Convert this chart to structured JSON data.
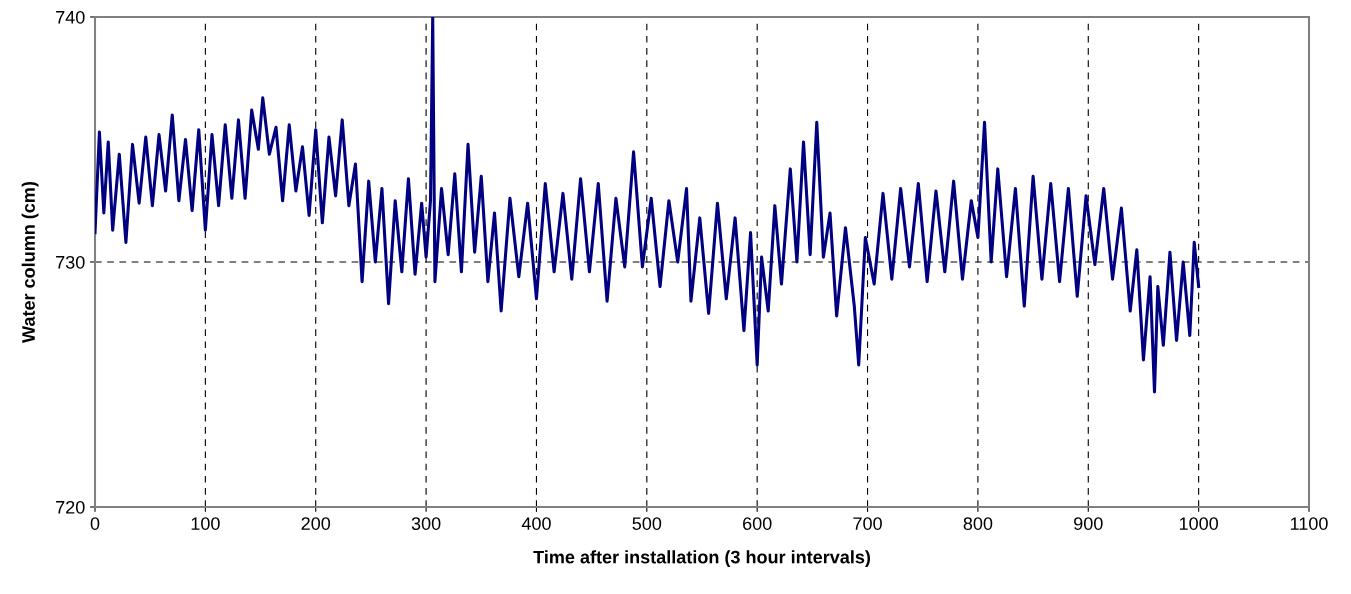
{
  "chart_data": {
    "type": "line",
    "xlabel": "Time after installation (3 hour intervals)",
    "ylabel": "Water column (cm)",
    "xlim": [
      0,
      1100
    ],
    "xticks": [
      0,
      100,
      200,
      300,
      400,
      500,
      600,
      700,
      800,
      900,
      1000,
      1100
    ],
    "ylim": [
      720,
      740
    ],
    "yticks": [
      720,
      730,
      740
    ],
    "grid": true,
    "marker": "none",
    "line_style": "solid",
    "series": [
      {
        "color": "#000080",
        "x": [
          0,
          4,
          8,
          12,
          16,
          22,
          28,
          34,
          40,
          46,
          52,
          58,
          64,
          70,
          76,
          82,
          88,
          94,
          100,
          106,
          112,
          118,
          124,
          130,
          136,
          142,
          148,
          152,
          158,
          164,
          170,
          176,
          182,
          188,
          194,
          200,
          206,
          212,
          218,
          224,
          230,
          236,
          242,
          248,
          254,
          260,
          266,
          272,
          278,
          284,
          290,
          296,
          300,
          304,
          306,
          308,
          314,
          320,
          326,
          332,
          338,
          344,
          350,
          356,
          362,
          368,
          376,
          384,
          392,
          400,
          408,
          416,
          424,
          432,
          440,
          448,
          456,
          464,
          472,
          480,
          488,
          496,
          504,
          512,
          520,
          528,
          536,
          540,
          548,
          556,
          564,
          572,
          580,
          588,
          594,
          600,
          604,
          610,
          616,
          622,
          630,
          636,
          642,
          648,
          654,
          660,
          666,
          672,
          680,
          688,
          692,
          698,
          706,
          714,
          722,
          730,
          738,
          746,
          754,
          762,
          770,
          778,
          786,
          794,
          800,
          806,
          812,
          818,
          826,
          834,
          842,
          850,
          858,
          866,
          874,
          882,
          890,
          898,
          906,
          914,
          922,
          930,
          938,
          944,
          950,
          956,
          960,
          963,
          968,
          974,
          980,
          986,
          992,
          996,
          1000
        ],
        "values": [
          731.2,
          735.3,
          732.0,
          734.9,
          731.3,
          734.4,
          730.8,
          734.8,
          732.4,
          735.1,
          732.3,
          735.2,
          732.9,
          736.0,
          732.5,
          735.0,
          732.1,
          735.4,
          731.3,
          735.2,
          732.3,
          735.6,
          732.6,
          735.8,
          732.6,
          736.2,
          734.6,
          736.7,
          734.4,
          735.5,
          732.5,
          735.6,
          732.9,
          734.7,
          731.9,
          735.4,
          731.6,
          735.1,
          732.7,
          735.8,
          732.3,
          734.0,
          729.2,
          733.3,
          730.0,
          733.0,
          728.3,
          732.5,
          729.6,
          733.4,
          729.5,
          732.4,
          730.2,
          732.5,
          740.0,
          729.2,
          733.0,
          730.3,
          733.6,
          729.6,
          734.8,
          730.4,
          733.5,
          729.2,
          732.0,
          728.0,
          732.6,
          729.4,
          732.4,
          728.5,
          733.2,
          729.6,
          732.8,
          729.3,
          733.4,
          729.6,
          733.2,
          728.4,
          732.6,
          729.8,
          734.5,
          729.8,
          732.6,
          729.0,
          732.5,
          730.0,
          733.0,
          728.4,
          731.8,
          727.9,
          732.4,
          728.5,
          731.8,
          727.2,
          731.2,
          725.8,
          730.2,
          728.0,
          732.3,
          729.1,
          733.8,
          730.0,
          734.9,
          730.3,
          735.7,
          730.2,
          732.0,
          727.8,
          731.4,
          728.2,
          725.8,
          731.0,
          729.1,
          732.8,
          729.3,
          733.0,
          729.8,
          733.2,
          729.2,
          732.9,
          729.6,
          733.3,
          729.3,
          732.5,
          731.0,
          735.7,
          730.0,
          733.8,
          729.4,
          733.0,
          728.2,
          733.5,
          729.3,
          733.2,
          729.2,
          733.0,
          728.6,
          732.7,
          729.9,
          733.0,
          729.3,
          732.2,
          728.0,
          730.5,
          726.0,
          729.4,
          724.7,
          729.0,
          726.6,
          730.4,
          726.8,
          730.0,
          727.0,
          730.8,
          729.0
        ]
      }
    ]
  }
}
